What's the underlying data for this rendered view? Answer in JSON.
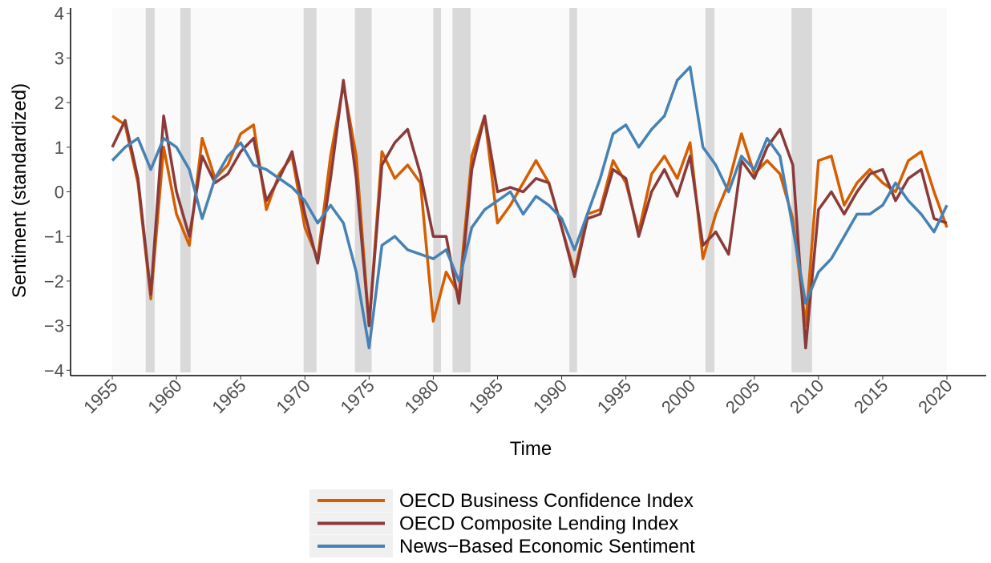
{
  "chart_data": {
    "type": "line",
    "x_label": "Time",
    "y_label": "Sentiment (standardized)",
    "x": [
      1955,
      1956,
      1957,
      1958,
      1959,
      1960,
      1961,
      1962,
      1963,
      1964,
      1965,
      1966,
      1967,
      1968,
      1969,
      1970,
      1971,
      1972,
      1973,
      1974,
      1975,
      1976,
      1977,
      1978,
      1979,
      1980,
      1981,
      1982,
      1983,
      1984,
      1985,
      1986,
      1987,
      1988,
      1989,
      1990,
      1991,
      1992,
      1993,
      1994,
      1995,
      1996,
      1997,
      1998,
      1999,
      2000,
      2001,
      2002,
      2003,
      2004,
      2005,
      2006,
      2007,
      2008,
      2009,
      2010,
      2011,
      2012,
      2013,
      2014,
      2015,
      2016,
      2017,
      2018,
      2019,
      2020
    ],
    "series": [
      {
        "name": "OECD Business Confidence Index",
        "color": "#d55e00",
        "values": [
          1.7,
          1.5,
          0.2,
          -2.4,
          1.0,
          -0.5,
          -1.2,
          1.2,
          0.3,
          0.6,
          1.3,
          1.5,
          -0.4,
          0.4,
          0.8,
          -0.8,
          -1.5,
          0.8,
          2.4,
          0.8,
          -3.0,
          0.9,
          0.3,
          0.6,
          0.2,
          -2.9,
          -1.8,
          -2.3,
          0.8,
          1.7,
          -0.7,
          -0.3,
          0.2,
          0.7,
          0.2,
          -0.8,
          -1.8,
          -0.5,
          -0.4,
          0.7,
          0.2,
          -0.9,
          0.4,
          0.8,
          0.3,
          1.1,
          -1.5,
          -0.5,
          0.2,
          1.3,
          0.4,
          0.7,
          0.4,
          -0.6,
          -3.0,
          0.7,
          0.8,
          -0.3,
          0.2,
          0.5,
          0.2,
          0.0,
          0.7,
          0.9,
          0.0,
          -0.8
        ]
      },
      {
        "name": "OECD Composite Lending Index",
        "color": "#8b3a3a",
        "values": [
          1.0,
          1.6,
          0.3,
          -2.3,
          1.7,
          0.0,
          -1.0,
          0.8,
          0.2,
          0.4,
          0.9,
          1.2,
          -0.2,
          0.3,
          0.9,
          -0.5,
          -1.6,
          0.3,
          2.5,
          0.3,
          -3.0,
          0.6,
          1.1,
          1.4,
          0.4,
          -1.0,
          -1.0,
          -2.5,
          0.5,
          1.7,
          0.0,
          0.1,
          0.0,
          0.3,
          0.2,
          -0.8,
          -1.9,
          -0.6,
          -0.5,
          0.5,
          0.3,
          -1.0,
          0.0,
          0.5,
          -0.1,
          0.8,
          -1.2,
          -0.9,
          -1.4,
          0.7,
          0.3,
          1.0,
          1.4,
          0.6,
          -3.5,
          -0.4,
          0.0,
          -0.5,
          0.0,
          0.4,
          0.5,
          -0.2,
          0.3,
          0.5,
          -0.6,
          -0.7
        ]
      },
      {
        "name": "News−Based Economic Sentiment",
        "color": "#4682b4",
        "values": [
          0.7,
          1.0,
          1.2,
          0.5,
          1.2,
          1.0,
          0.5,
          -0.6,
          0.3,
          0.8,
          1.1,
          0.6,
          0.5,
          0.3,
          0.1,
          -0.2,
          -0.7,
          -0.3,
          -0.7,
          -1.8,
          -3.5,
          -1.2,
          -1.0,
          -1.3,
          -1.4,
          -1.5,
          -1.3,
          -2.0,
          -0.8,
          -0.4,
          -0.2,
          0.0,
          -0.5,
          -0.1,
          -0.3,
          -0.6,
          -1.3,
          -0.5,
          0.3,
          1.3,
          1.5,
          1.0,
          1.4,
          1.7,
          2.5,
          2.8,
          1.0,
          0.6,
          0.0,
          0.8,
          0.5,
          1.2,
          0.8,
          -0.8,
          -2.5,
          -1.8,
          -1.5,
          -1.0,
          -0.5,
          -0.5,
          -0.3,
          0.2,
          -0.2,
          -0.5,
          -0.9,
          -0.3
        ]
      }
    ],
    "shaded_periods": [
      [
        1957.6,
        1958.3
      ],
      [
        1960.3,
        1961.1
      ],
      [
        1969.9,
        1970.9
      ],
      [
        1973.9,
        1975.2
      ],
      [
        1980.0,
        1980.6
      ],
      [
        1981.5,
        1982.9
      ],
      [
        1990.6,
        1991.2
      ],
      [
        2001.2,
        2001.9
      ],
      [
        2007.9,
        2009.5
      ]
    ],
    "xlim": [
      1951.75,
      2023.06
    ],
    "xticks": [
      1955,
      1960,
      1965,
      1970,
      1975,
      1980,
      1985,
      1990,
      1995,
      2000,
      2005,
      2010,
      2015,
      2020
    ],
    "ylim": [
      -4.12,
      4.12
    ],
    "yticks": [
      {
        "value": -4,
        "label": "−4"
      },
      {
        "value": -3,
        "label": "−3"
      },
      {
        "value": -2,
        "label": "−2"
      },
      {
        "value": -1,
        "label": "−1"
      },
      0,
      1,
      2,
      3,
      4
    ],
    "legend": "bottom"
  }
}
